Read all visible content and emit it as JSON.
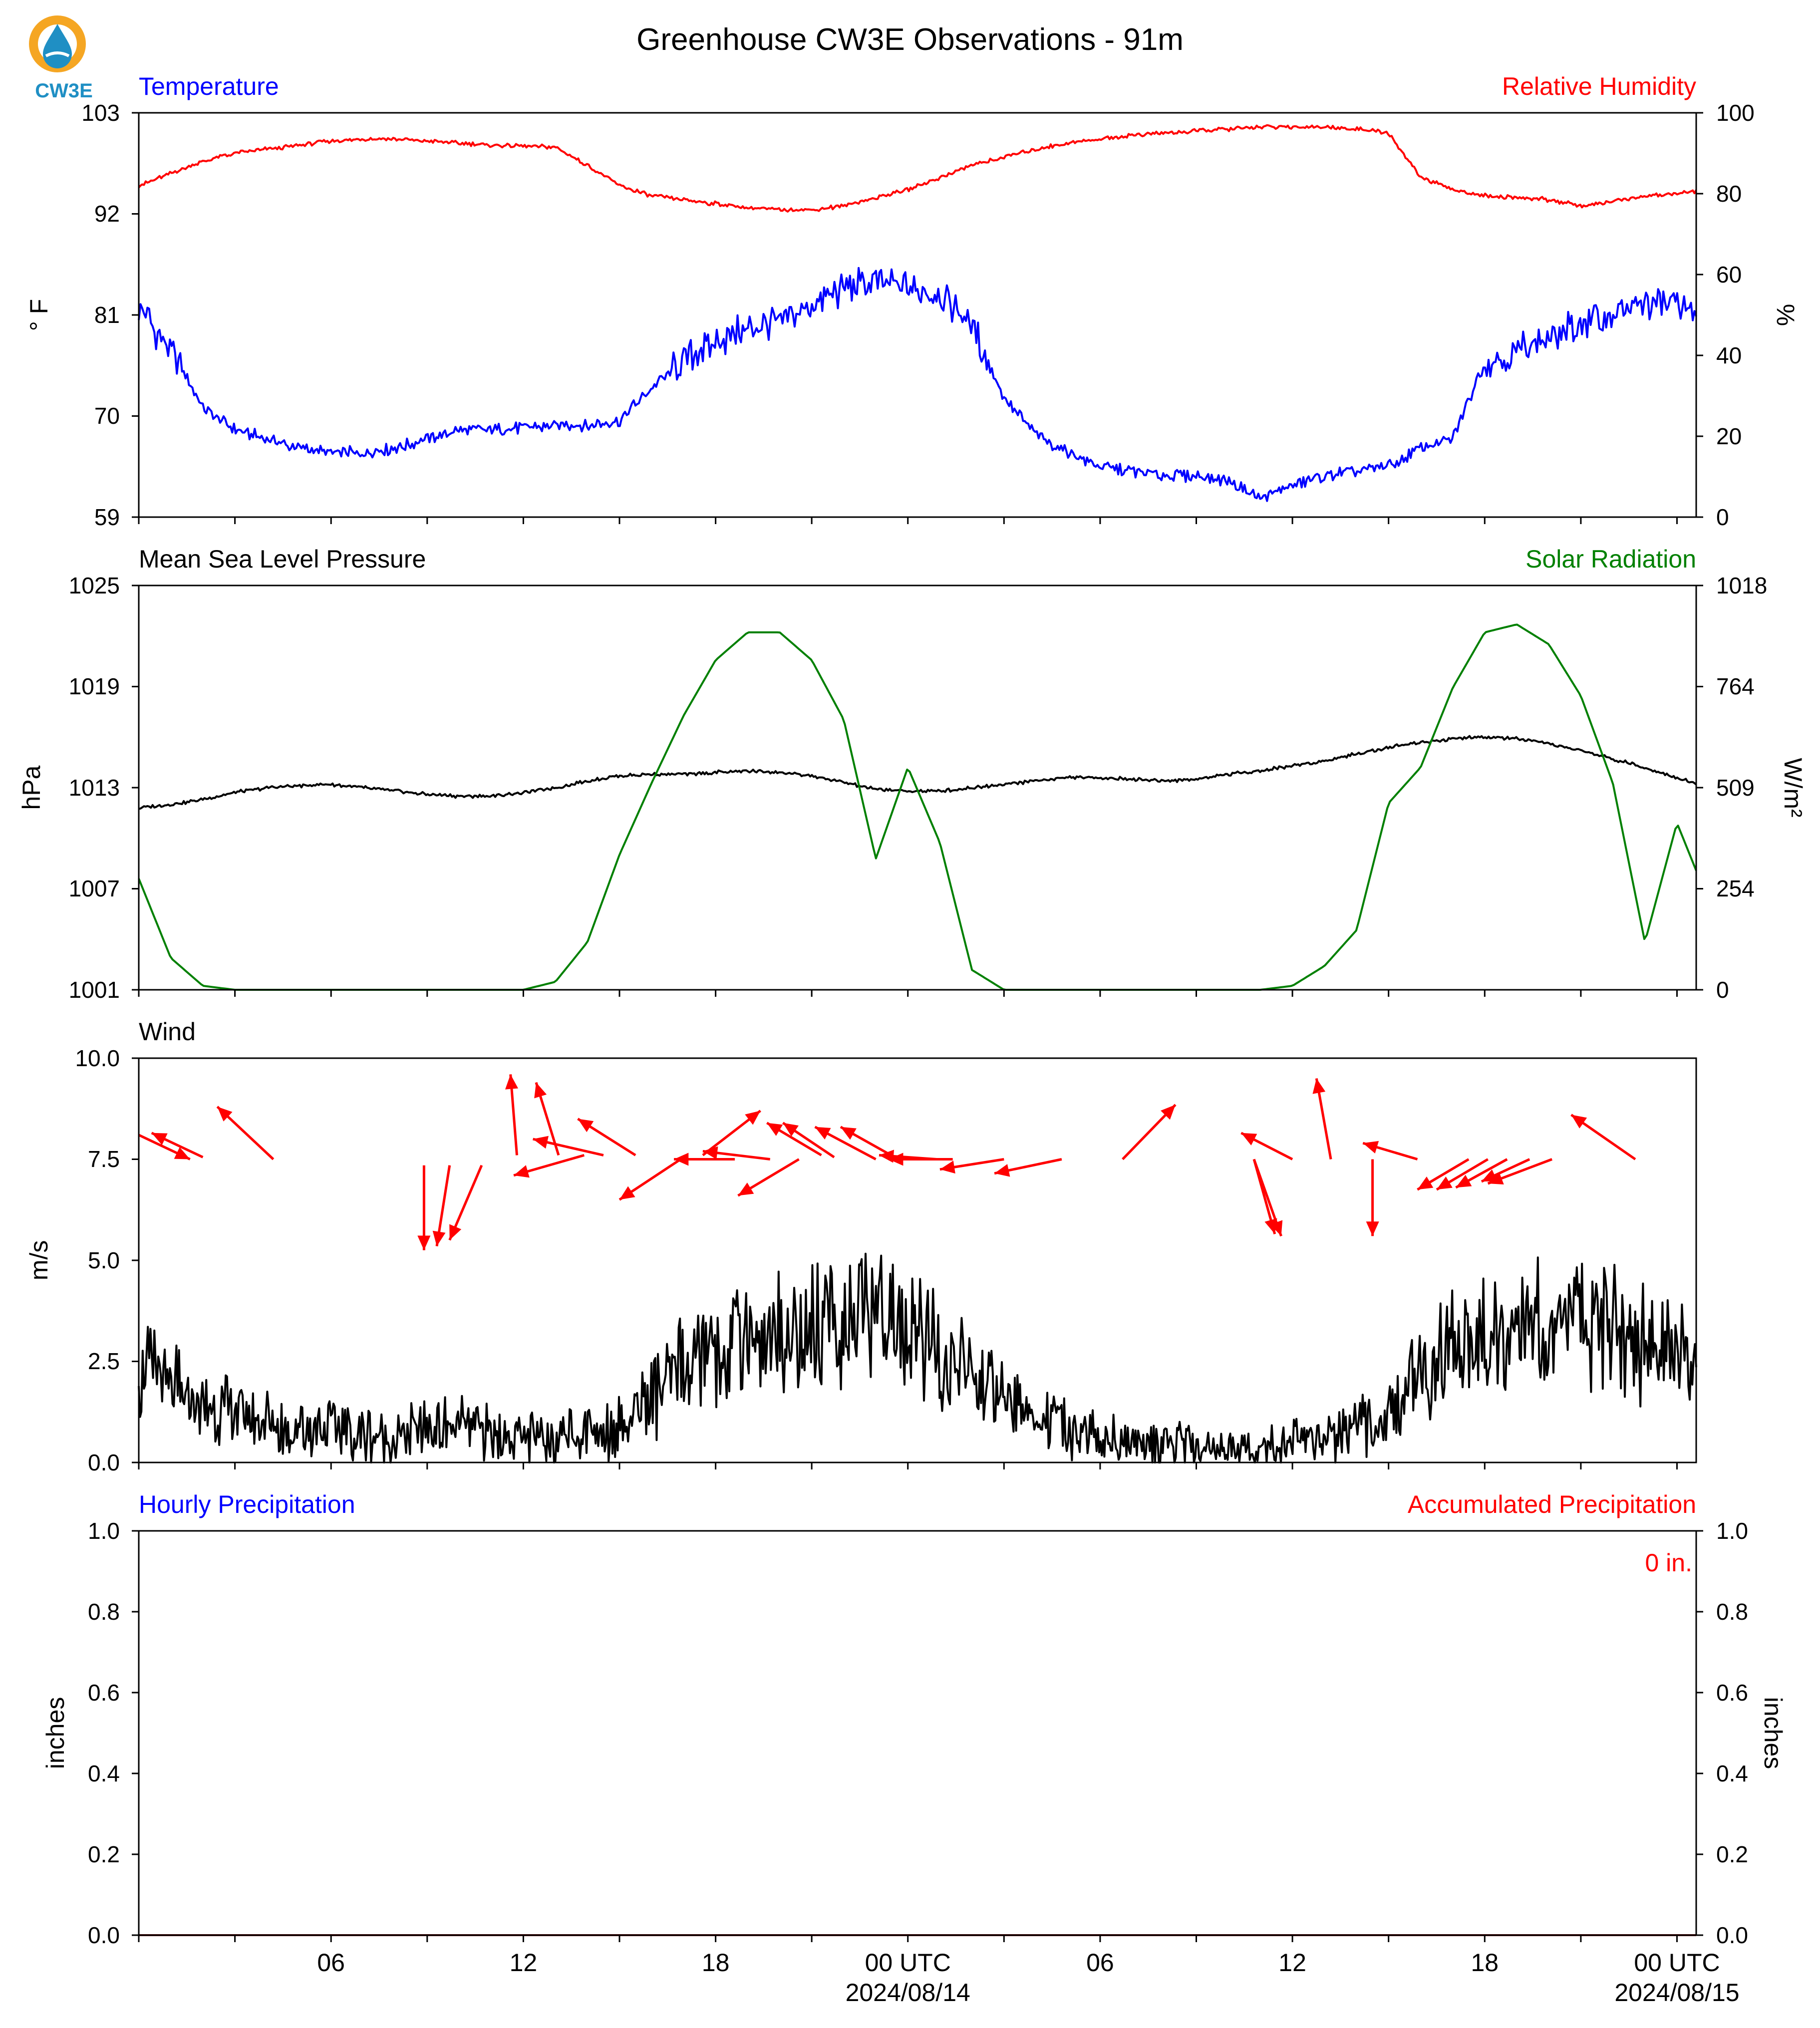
{
  "title": "Greenhouse CW3E Observations - 91m",
  "logo": {
    "text": "CW3E",
    "icon": "cw3e-drop-logo-icon",
    "ring_color": "#f5a623",
    "drop_color": "#1f8fc4"
  },
  "colors": {
    "blue": "#0000ff",
    "red": "#ff0000",
    "green": "#008000",
    "black": "#000000"
  },
  "x_axis": {
    "range_hours": [
      -48,
      0.6
    ],
    "ticks_hours": [
      -48,
      -45,
      -42,
      -39,
      -36,
      -33,
      -30,
      -27,
      -24,
      -21,
      -18,
      -15,
      -12,
      -9,
      -6,
      -3,
      0
    ],
    "labels": [
      {
        "hour": -42,
        "text": "06"
      },
      {
        "hour": -36,
        "text": "12"
      },
      {
        "hour": -30,
        "text": "18"
      },
      {
        "hour": -24,
        "text": "00 UTC",
        "date": "2024/08/14"
      },
      {
        "hour": -18,
        "text": "06"
      },
      {
        "hour": -12,
        "text": "12"
      },
      {
        "hour": -6,
        "text": "18"
      },
      {
        "hour": 0,
        "text": "00 UTC",
        "date": "2024/08/15"
      }
    ]
  },
  "chart_data": [
    {
      "type": "line",
      "panel": "temperature-humidity",
      "left_title": "Temperature",
      "right_title": "Relative Humidity",
      "ylabel": "° F",
      "ylabel_right": "%",
      "ylim": [
        59,
        103
      ],
      "yticks": [
        "59",
        "70",
        "81",
        "92",
        "103"
      ],
      "ylim_right": [
        0,
        100
      ],
      "yticks_right": [
        "0",
        "20",
        "40",
        "60",
        "80",
        "100"
      ],
      "x_hours": [
        -48,
        -47,
        -46,
        -45,
        -44,
        -43,
        -42,
        -41,
        -40,
        -39,
        -38,
        -37,
        -36,
        -35,
        -34,
        -33,
        -32,
        -31,
        -30,
        -29,
        -28,
        -27,
        -26,
        -25,
        -24,
        -23,
        -22,
        -21,
        -20,
        -19,
        -18,
        -17,
        -16,
        -15,
        -14,
        -13,
        -12,
        -11,
        -10,
        -9,
        -8,
        -7,
        -6,
        -5,
        -4,
        -3,
        -2,
        -1,
        0,
        0.6
      ],
      "series": [
        {
          "name": "Temperature",
          "axis": "left",
          "color": "#0000ff",
          "values": [
            82,
            77,
            71,
            68.5,
            67.5,
            66.5,
            66,
            66,
            66.5,
            67.5,
            68.5,
            68.5,
            68.7,
            69,
            69,
            69.5,
            73,
            76,
            78,
            79.5,
            80.5,
            82,
            84,
            84.5,
            84,
            83.5,
            80,
            72,
            68,
            66,
            64.5,
            64,
            63.5,
            63.5,
            63,
            61,
            62.5,
            63.5,
            64,
            64.5,
            66.5,
            67.5,
            76,
            77,
            78.5,
            80,
            81,
            82,
            82.5,
            81
          ]
        },
        {
          "name": "Relative Humidity",
          "axis": "right",
          "color": "#ff0000",
          "values": [
            82,
            85,
            88,
            90,
            91,
            92,
            93,
            93.5,
            93.5,
            93,
            92.5,
            92,
            91.8,
            91.5,
            87,
            82,
            79.5,
            78.5,
            77.5,
            76.5,
            76,
            76,
            77,
            79,
            81,
            84,
            87,
            89,
            91,
            92.5,
            93.5,
            94.5,
            95,
            95.5,
            96,
            96.5,
            96.5,
            96.5,
            96,
            95,
            84,
            81,
            79.5,
            79,
            78.5,
            77,
            78,
            79.5,
            80,
            80.5
          ]
        }
      ]
    },
    {
      "type": "line",
      "panel": "pressure-solar",
      "left_title": "Mean Sea Level Pressure",
      "right_title": "Solar Radiation",
      "ylabel": "hPa",
      "ylabel_right": "W/m²",
      "ylim": [
        1001,
        1025
      ],
      "yticks": [
        "1001",
        "1007",
        "1013",
        "1019",
        "1025"
      ],
      "ylim_right": [
        0,
        1018
      ],
      "yticks_right": [
        "0",
        "254",
        "509",
        "764",
        "1018"
      ],
      "x_hours": [
        -48,
        -47,
        -46,
        -45,
        -44,
        -43,
        -42,
        -41,
        -40,
        -39,
        -38,
        -37,
        -36,
        -35,
        -34,
        -33,
        -32,
        -31,
        -30,
        -29,
        -28,
        -27,
        -26,
        -25,
        -24,
        -23,
        -22,
        -21,
        -20,
        -19,
        -18,
        -17,
        -16,
        -15,
        -14,
        -13,
        -12,
        -11,
        -10,
        -9,
        -8,
        -7,
        -6,
        -5,
        -4,
        -3,
        -2,
        -1,
        0,
        0.6
      ],
      "series": [
        {
          "name": "Pressure",
          "axis": "left",
          "color": "#000000",
          "values": [
            1011.8,
            1012,
            1012.3,
            1012.7,
            1013,
            1013.1,
            1013.2,
            1013,
            1012.8,
            1012.6,
            1012.5,
            1012.5,
            1012.7,
            1013,
            1013.4,
            1013.7,
            1013.8,
            1013.8,
            1013.9,
            1014,
            1013.9,
            1013.7,
            1013.3,
            1012.9,
            1012.8,
            1012.8,
            1013,
            1013.2,
            1013.4,
            1013.6,
            1013.6,
            1013.5,
            1013.4,
            1013.5,
            1013.8,
            1014,
            1014.3,
            1014.6,
            1015,
            1015.4,
            1015.7,
            1015.9,
            1016,
            1015.9,
            1015.6,
            1015.2,
            1014.7,
            1014.2,
            1013.6,
            1013.2
          ]
        },
        {
          "name": "Solar Radiation",
          "axis": "right",
          "color": "#008000",
          "values": [
            280,
            80,
            10,
            0,
            0,
            0,
            0,
            0,
            0,
            0,
            0,
            0,
            0,
            20,
            120,
            340,
            520,
            690,
            830,
            900,
            900,
            830,
            680,
            330,
            560,
            370,
            50,
            0,
            0,
            0,
            0,
            0,
            0,
            0,
            0,
            0,
            10,
            60,
            150,
            470,
            560,
            760,
            900,
            920,
            870,
            740,
            520,
            120,
            420,
            300
          ]
        }
      ]
    },
    {
      "type": "line",
      "panel": "wind",
      "left_title": "Wind",
      "ylabel": "m/s",
      "ylim": [
        0,
        10
      ],
      "yticks": [
        "0.0",
        "2.5",
        "5.0",
        "7.5",
        "10.0"
      ],
      "x_hours": [
        -48,
        -47,
        -46,
        -45,
        -44,
        -43,
        -42,
        -41,
        -40,
        -39,
        -38,
        -37,
        -36,
        -35,
        -34,
        -33,
        -32,
        -31,
        -30,
        -29,
        -28,
        -27,
        -26,
        -25,
        -24,
        -23,
        -22,
        -21,
        -20,
        -19,
        -18,
        -17,
        -16,
        -15,
        -14,
        -13,
        -12,
        -11,
        -10,
        -9,
        -8,
        -7,
        -6,
        -5,
        -4,
        -3,
        -2,
        -1,
        0,
        0.6
      ],
      "series": [
        {
          "name": "Wind Speed",
          "color": "#000000",
          "values": [
            2.3,
            1.8,
            1.4,
            1.2,
            1.0,
            0.8,
            0.9,
            0.7,
            0.6,
            0.8,
            0.9,
            0.7,
            0.6,
            0.7,
            0.8,
            1.0,
            1.6,
            2.3,
            2.8,
            3.1,
            3.2,
            3.3,
            3.4,
            3.6,
            3.2,
            2.6,
            2.1,
            1.6,
            1.1,
            0.8,
            0.6,
            0.5,
            0.4,
            0.4,
            0.3,
            0.3,
            0.4,
            0.6,
            0.9,
            1.3,
            2.0,
            2.8,
            3.2,
            3.4,
            3.5,
            3.3,
            3.2,
            3.0,
            2.8,
            2.5
          ]
        }
      ],
      "wind_vectors": [
        {
          "h": -48.0,
          "y": 8.1,
          "dx": 1.6,
          "dy": -0.6
        },
        {
          "h": -46.0,
          "y": 7.55,
          "dx": -1.6,
          "dy": 0.6
        },
        {
          "h": -43.8,
          "y": 7.5,
          "dx": -1.75,
          "dy": 1.3
        },
        {
          "h": -39.1,
          "y": 7.35,
          "dx": 0,
          "dy": -2.1
        },
        {
          "h": -38.3,
          "y": 7.35,
          "dx": -0.4,
          "dy": -2.0
        },
        {
          "h": -37.3,
          "y": 7.35,
          "dx": -1.0,
          "dy": -1.85
        },
        {
          "h": -36.2,
          "y": 7.6,
          "dx": -0.2,
          "dy": 2.0
        },
        {
          "h": -34.9,
          "y": 7.6,
          "dx": -0.7,
          "dy": 1.8
        },
        {
          "h": -34.1,
          "y": 7.6,
          "dx": -2.2,
          "dy": -0.5
        },
        {
          "h": -33.5,
          "y": 7.6,
          "dx": -2.2,
          "dy": 0.4
        },
        {
          "h": -32.5,
          "y": 7.6,
          "dx": -1.8,
          "dy": 0.9
        },
        {
          "h": -30.9,
          "y": 7.6,
          "dx": -2.1,
          "dy": -1.1
        },
        {
          "h": -30.4,
          "y": 7.6,
          "dx": 1.8,
          "dy": 1.1
        },
        {
          "h": -29.4,
          "y": 7.5,
          "dx": -1.9,
          "dy": 0
        },
        {
          "h": -28.3,
          "y": 7.5,
          "dx": -2.1,
          "dy": 0.2
        },
        {
          "h": -27.4,
          "y": 7.5,
          "dx": -1.9,
          "dy": -0.9
        },
        {
          "h": -26.7,
          "y": 7.6,
          "dx": -1.7,
          "dy": 0.8
        },
        {
          "h": -26.3,
          "y": 7.55,
          "dx": -1.6,
          "dy": 0.85
        },
        {
          "h": -25.0,
          "y": 7.5,
          "dx": -1.9,
          "dy": 0.8
        },
        {
          "h": -24.3,
          "y": 7.5,
          "dx": -1.8,
          "dy": 0.8
        },
        {
          "h": -23.1,
          "y": 7.5,
          "dx": -1.8,
          "dy": 0.1
        },
        {
          "h": -22.6,
          "y": 7.5,
          "dx": -2.0,
          "dy": 0
        },
        {
          "h": -21.0,
          "y": 7.5,
          "dx": -2.0,
          "dy": -0.25
        },
        {
          "h": -19.2,
          "y": 7.5,
          "dx": -2.1,
          "dy": -0.35
        },
        {
          "h": -17.3,
          "y": 7.5,
          "dx": 1.65,
          "dy": 1.35
        },
        {
          "h": -13.2,
          "y": 7.5,
          "dx": 0.85,
          "dy": -1.9
        },
        {
          "h": -13.2,
          "y": 7.5,
          "dx": 0.65,
          "dy": -1.85
        },
        {
          "h": -12.0,
          "y": 7.5,
          "dx": -1.6,
          "dy": 0.65
        },
        {
          "h": -10.8,
          "y": 7.5,
          "dx": -0.45,
          "dy": 2.0
        },
        {
          "h": -9.5,
          "y": 7.5,
          "dx": 0,
          "dy": -1.9
        },
        {
          "h": -8.1,
          "y": 7.5,
          "dx": -1.7,
          "dy": 0.4
        },
        {
          "h": -6.5,
          "y": 7.5,
          "dx": -1.6,
          "dy": -0.75
        },
        {
          "h": -5.9,
          "y": 7.5,
          "dx": -1.6,
          "dy": -0.75
        },
        {
          "h": -5.3,
          "y": 7.5,
          "dx": -1.6,
          "dy": -0.7
        },
        {
          "h": -4.6,
          "y": 7.5,
          "dx": -1.5,
          "dy": -0.55
        },
        {
          "h": -3.9,
          "y": 7.5,
          "dx": -2.0,
          "dy": -0.6
        },
        {
          "h": -1.3,
          "y": 7.5,
          "dx": -2.0,
          "dy": 1.1
        }
      ]
    },
    {
      "type": "line",
      "panel": "precipitation",
      "left_title": "Hourly Precipitation",
      "right_title": "Accumulated Precipitation",
      "ylabel": "inches",
      "ylabel_right": "inches",
      "ylim": [
        0,
        1
      ],
      "yticks": [
        "0.0",
        "0.2",
        "0.4",
        "0.6",
        "0.8",
        "1.0"
      ],
      "ylim_right": [
        0,
        1
      ],
      "yticks_right": [
        "0.0",
        "0.2",
        "0.4",
        "0.6",
        "0.8",
        "1.0"
      ],
      "annotation": "0 in.",
      "series": [
        {
          "name": "Hourly Precipitation",
          "axis": "left",
          "color": "#0000ff",
          "x_hours": [
            -48,
            0.6
          ],
          "values": [
            0,
            0
          ]
        },
        {
          "name": "Accumulated Precipitation",
          "axis": "right",
          "color": "#8b0000",
          "x_hours": [
            -48,
            0.6
          ],
          "values": [
            0,
            0
          ]
        }
      ]
    }
  ]
}
